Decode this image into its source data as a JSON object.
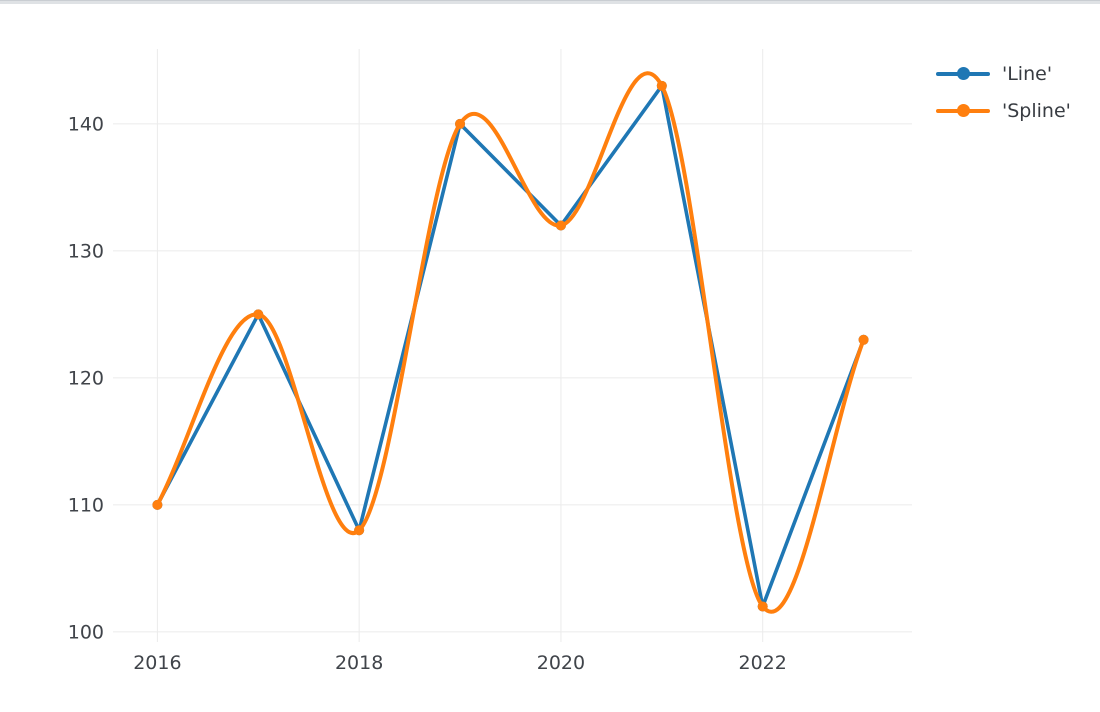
{
  "chart_data": {
    "type": "line",
    "title": "",
    "xlabel": "",
    "ylabel": "",
    "x": [
      2016,
      2017,
      2018,
      2019,
      2020,
      2021,
      2022,
      2023
    ],
    "series": [
      {
        "name": "'Line'",
        "type": "line",
        "color": "#1f77b4",
        "values": [
          110,
          125,
          108,
          140,
          132,
          143,
          102,
          123
        ]
      },
      {
        "name": "'Spline'",
        "type": "spline",
        "color": "#ff7f0e",
        "values": [
          110,
          125,
          108,
          140,
          132,
          143,
          102,
          123
        ]
      }
    ],
    "xticks": [
      2016,
      2018,
      2020,
      2022
    ],
    "yticks": [
      100,
      110,
      120,
      130,
      140
    ],
    "xlim": [
      2015.56,
      2023.48
    ],
    "ylim": [
      99.2,
      145.9
    ],
    "grid": true,
    "legend_position": "right-top",
    "style": {
      "background": "#ffffff",
      "grid_color": "#ebebeb",
      "tick_label_color": "#40444a",
      "legend_text_color": "#383c42",
      "top_strip_color": "#dfe2e5",
      "top_strip_border_color": "#c9cdd2"
    }
  }
}
